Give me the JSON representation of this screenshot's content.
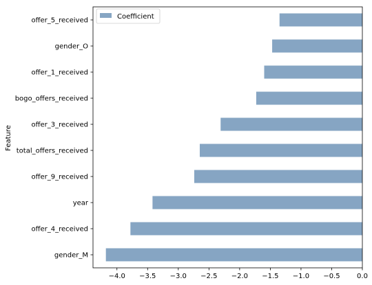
{
  "chart_data": {
    "type": "bar",
    "orientation": "horizontal",
    "categories": [
      "offer_5_received",
      "gender_O",
      "offer_1_received",
      "bogo_offers_received",
      "offer_3_received",
      "total_offers_received",
      "offer_9_received",
      "year",
      "offer_4_received",
      "gender_M"
    ],
    "series": [
      {
        "name": "Coefficient",
        "color": "#86a5c3",
        "values": [
          -1.35,
          -1.47,
          -1.6,
          -1.73,
          -2.31,
          -2.65,
          -2.74,
          -3.42,
          -3.78,
          -4.18
        ]
      }
    ],
    "xticks": [
      "−4.0",
      "−3.5",
      "−3.0",
      "−2.5",
      "−2.0",
      "−1.5",
      "−1.0",
      "−0.5",
      "0.0"
    ],
    "xtick_values": [
      -4.0,
      -3.5,
      -3.0,
      -2.5,
      -2.0,
      -1.5,
      -1.0,
      -0.5,
      0.0
    ],
    "xlim": [
      -4.39,
      0.0
    ],
    "xlabel": "",
    "ylabel": "Feature",
    "grid": false,
    "legend_position": "top-left"
  }
}
